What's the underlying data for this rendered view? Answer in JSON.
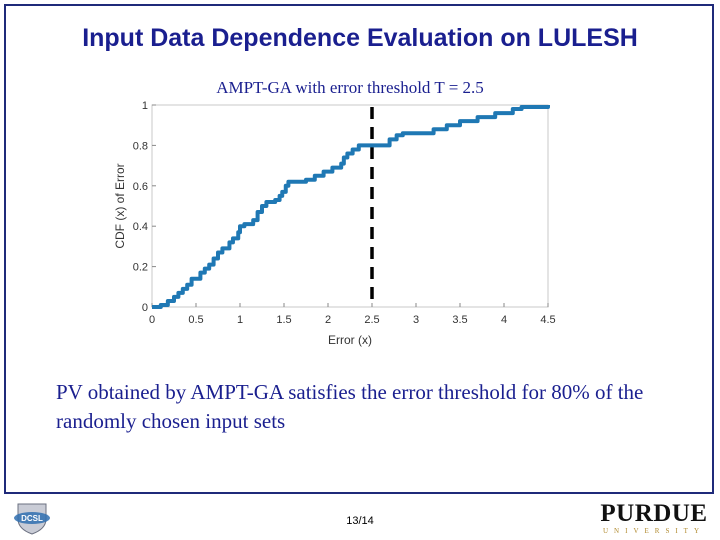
{
  "slide": {
    "title": "Input Data Dependence Evaluation on LULESH",
    "body": "PV obtained by AMPT-GA satisfies the error threshold for 80% of the randomly chosen input sets",
    "page": "13/14"
  },
  "logos": {
    "left": {
      "text": "DCSL",
      "icon": "dcsl-shield-logo"
    },
    "right": {
      "text": "PURDUE",
      "sub": "UNIVERSITY"
    }
  },
  "colors": {
    "accent": "#1a1f8f",
    "series": "#1f78b4",
    "threshold": "#000000"
  },
  "chart_data": {
    "type": "line",
    "title": "AMPT-GA with error threshold T = 2.5",
    "xlabel": "Error (x)",
    "ylabel": "CDF (x) of Error",
    "xlim": [
      0,
      4.5
    ],
    "ylim": [
      0,
      1
    ],
    "xticks": [
      "0",
      "0.5",
      "1",
      "1.5",
      "2",
      "2.5",
      "3",
      "3.5",
      "4",
      "4.5"
    ],
    "yticks": [
      "0",
      "0.2",
      "0.4",
      "0.6",
      "0.8",
      "1"
    ],
    "grid": false,
    "threshold_x": 2.5,
    "series": [
      {
        "step": true,
        "points": [
          [
            0,
            0
          ],
          [
            0.1,
            0.01
          ],
          [
            0.18,
            0.03
          ],
          [
            0.25,
            0.05
          ],
          [
            0.3,
            0.07
          ],
          [
            0.35,
            0.09
          ],
          [
            0.4,
            0.11
          ],
          [
            0.45,
            0.14
          ],
          [
            0.55,
            0.17
          ],
          [
            0.6,
            0.19
          ],
          [
            0.65,
            0.21
          ],
          [
            0.7,
            0.24
          ],
          [
            0.75,
            0.27
          ],
          [
            0.8,
            0.29
          ],
          [
            0.88,
            0.32
          ],
          [
            0.92,
            0.34
          ],
          [
            0.98,
            0.37
          ],
          [
            1.0,
            0.4
          ],
          [
            1.05,
            0.41
          ],
          [
            1.15,
            0.43
          ],
          [
            1.2,
            0.47
          ],
          [
            1.25,
            0.5
          ],
          [
            1.3,
            0.52
          ],
          [
            1.4,
            0.53
          ],
          [
            1.45,
            0.55
          ],
          [
            1.48,
            0.57
          ],
          [
            1.52,
            0.6
          ],
          [
            1.55,
            0.62
          ],
          [
            1.75,
            0.63
          ],
          [
            1.85,
            0.65
          ],
          [
            1.95,
            0.67
          ],
          [
            2.05,
            0.69
          ],
          [
            2.15,
            0.71
          ],
          [
            2.18,
            0.74
          ],
          [
            2.22,
            0.76
          ],
          [
            2.28,
            0.78
          ],
          [
            2.35,
            0.8
          ],
          [
            2.6,
            0.8
          ],
          [
            2.7,
            0.83
          ],
          [
            2.78,
            0.85
          ],
          [
            2.85,
            0.86
          ],
          [
            3.2,
            0.88
          ],
          [
            3.35,
            0.9
          ],
          [
            3.5,
            0.92
          ],
          [
            3.7,
            0.94
          ],
          [
            3.9,
            0.96
          ],
          [
            4.1,
            0.98
          ],
          [
            4.2,
            0.99
          ],
          [
            4.5,
            1.0
          ]
        ]
      }
    ]
  }
}
